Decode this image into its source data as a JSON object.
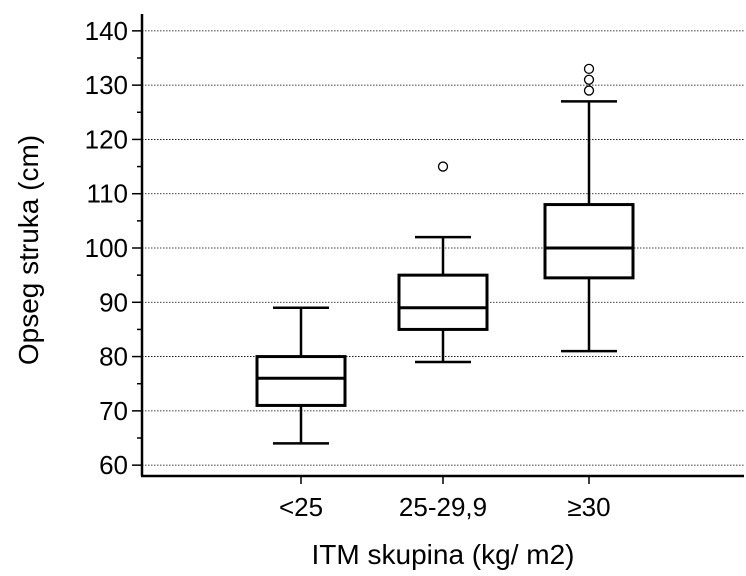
{
  "chart_data": {
    "type": "box",
    "xlabel": "ITM skupina (kg/ m2)",
    "ylabel": "Opseg struka (cm)",
    "ylim": [
      58,
      142
    ],
    "yticks": [
      60,
      70,
      80,
      90,
      100,
      110,
      120,
      130,
      140
    ],
    "grid": "horizontal",
    "categories": [
      "<25",
      "25-29,9",
      "≥30"
    ],
    "boxes": [
      {
        "category": "<25",
        "whisker_low": 64,
        "q1": 71,
        "median": 76,
        "q3": 80,
        "whisker_high": 89,
        "outliers": []
      },
      {
        "category": "25-29,9",
        "whisker_low": 79,
        "q1": 85,
        "median": 89,
        "q3": 95,
        "whisker_high": 102,
        "outliers": [
          115
        ]
      },
      {
        "category": "≥30",
        "whisker_low": 81,
        "q1": 94.5,
        "median": 100,
        "q3": 108,
        "whisker_high": 127,
        "outliers": [
          129,
          131,
          133
        ]
      }
    ]
  }
}
